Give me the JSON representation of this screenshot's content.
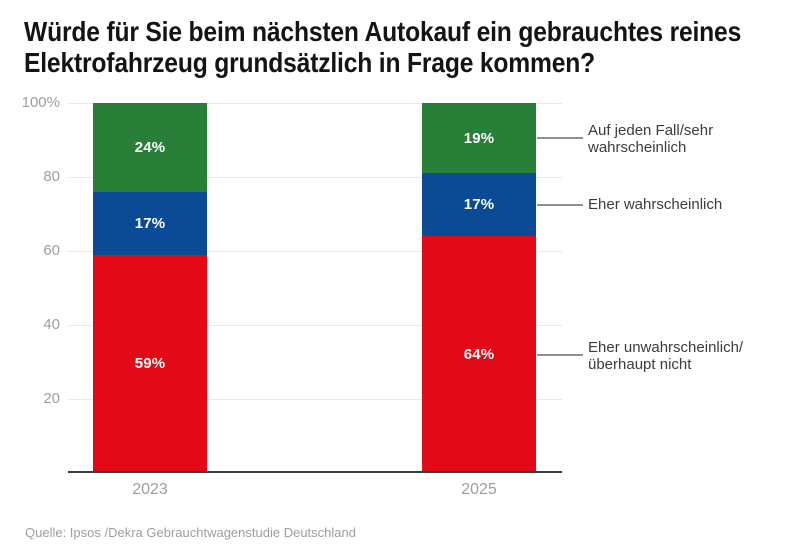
{
  "page": {
    "title_line1": "Würde für Sie beim nächsten Autokauf ein gebrauchtes reines",
    "title_line2": "Elektrofahrzeug grundsätzlich in Frage kommen?",
    "source": "Quelle: Ipsos /Dekra Gebrauchtwagenstudie Deutschland"
  },
  "axis": {
    "yticks": [
      {
        "value": 100,
        "label": "100%"
      },
      {
        "value": 80,
        "label": "80"
      },
      {
        "value": 60,
        "label": "60"
      },
      {
        "value": 40,
        "label": "40"
      },
      {
        "value": 20,
        "label": "20"
      }
    ],
    "xticks": [
      "2023",
      "2025"
    ]
  },
  "legend": [
    {
      "lines": [
        "Auf jeden Fall/sehr",
        "wahrscheinlich"
      ]
    },
    {
      "lines": [
        "Eher wahrscheinlich"
      ]
    },
    {
      "lines": [
        "Eher unwahrscheinlich/",
        "überhaupt nicht"
      ]
    }
  ],
  "colors": {
    "green": "#2a7f38",
    "blue": "#0b4a94",
    "red": "#e20a16",
    "grid": "#e9e9e9",
    "axis_line": "#3d3d3d",
    "tick_label": "#9e9e9e",
    "legend_text": "#3c3c3c"
  },
  "chart_data": {
    "type": "bar",
    "stacked": true,
    "title": "Würde für Sie beim nächsten Autokauf ein gebrauchtes reines Elektrofahrzeug grundsätzlich in Frage kommen?",
    "categories": [
      "2023",
      "2025"
    ],
    "series": [
      {
        "name": "Eher unwahrscheinlich/überhaupt nicht",
        "color": "#e20a16",
        "values": [
          59,
          64
        ],
        "labels": [
          "59%",
          "64%"
        ]
      },
      {
        "name": "Eher wahrscheinlich",
        "color": "#0b4a94",
        "values": [
          17,
          17
        ],
        "labels": [
          "17%",
          "17%"
        ]
      },
      {
        "name": "Auf jeden Fall/sehr wahrscheinlich",
        "color": "#2a7f38",
        "values": [
          24,
          19
        ],
        "labels": [
          "24%",
          "19%"
        ]
      }
    ],
    "xlabel": "",
    "ylabel": "",
    "ylim": [
      0,
      100
    ],
    "grid": true,
    "legend_position": "right-annotations",
    "source": "Quelle: Ipsos /Dekra Gebrauchtwagenstudie Deutschland"
  }
}
